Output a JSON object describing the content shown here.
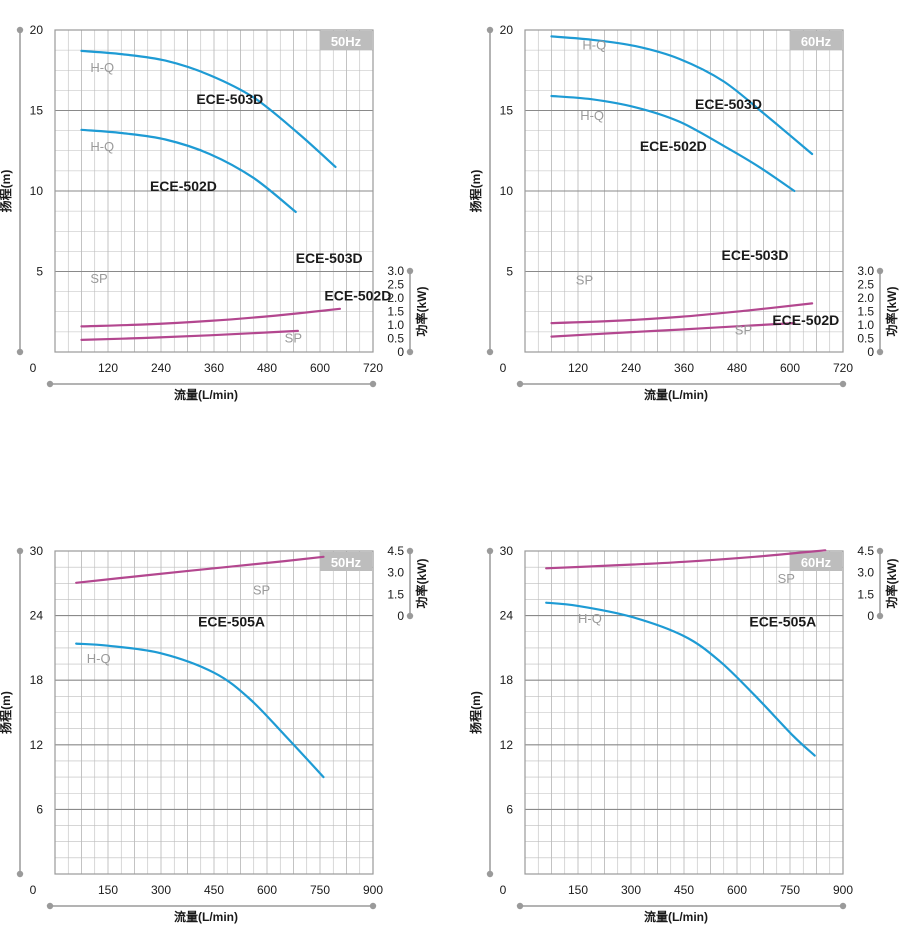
{
  "colors": {
    "head_curve": "#1e9bd4",
    "power_curve": "#b3478f",
    "grid": "#bdbdbd",
    "frame": "#9a9a9a",
    "freq_badge": "#bdbdbd"
  },
  "chart_data": [
    {
      "type": "line",
      "frequency": "50Hz",
      "xlabel": "流量(L/min)",
      "ylabel": "扬程(m)",
      "y2label": "功率(kW)",
      "xlim": [
        0,
        720
      ],
      "xticks": [
        "0",
        "120",
        "240",
        "360",
        "480",
        "600",
        "720"
      ],
      "ylim": [
        0,
        20
      ],
      "yticks": [
        "5",
        "10",
        "15",
        "20"
      ],
      "y2lim": [
        0,
        3.0
      ],
      "y2ticks": [
        "0",
        "0.5",
        "1.0",
        "1.5",
        "2.0",
        "2.5",
        "3.0"
      ],
      "series": [
        {
          "name": "ECE-503D",
          "kind": "H-Q",
          "axis": "left",
          "x": [
            60,
            150,
            250,
            350,
            450,
            550,
            635
          ],
          "y": [
            18.7,
            18.5,
            18.1,
            17.2,
            15.8,
            13.6,
            11.5
          ]
        },
        {
          "name": "ECE-502D",
          "kind": "H-Q",
          "axis": "left",
          "x": [
            60,
            150,
            250,
            350,
            450,
            545
          ],
          "y": [
            13.8,
            13.6,
            13.2,
            12.3,
            10.8,
            8.7
          ]
        },
        {
          "name": "ECE-503D",
          "kind": "SP",
          "axis": "right",
          "x": [
            60,
            200,
            350,
            500,
            645
          ],
          "y": [
            0.95,
            1.02,
            1.15,
            1.35,
            1.6
          ]
        },
        {
          "name": "ECE-502D",
          "kind": "SP",
          "axis": "right",
          "x": [
            60,
            200,
            350,
            550
          ],
          "y": [
            0.45,
            0.52,
            0.62,
            0.78
          ]
        }
      ],
      "annotations": [
        {
          "text": "ECE-503D",
          "class": "curve-label",
          "x": 320,
          "y": 15.4
        },
        {
          "text": "ECE-502D",
          "class": "curve-label",
          "x": 215,
          "y": 10.0
        },
        {
          "text": "ECE-503D",
          "class": "curve-label",
          "x": 545,
          "y": 3.3
        },
        {
          "text": "ECE-502D",
          "class": "curve-label",
          "x": 610,
          "y": 1.9
        },
        {
          "text": "H-Q",
          "class": "curve-type",
          "x": 80,
          "y": 17.4
        },
        {
          "text": "H-Q",
          "class": "curve-type",
          "x": 80,
          "y": 12.5
        },
        {
          "text": "SP",
          "class": "curve-type",
          "x": 80,
          "y": 2.55
        },
        {
          "text": "SP",
          "class": "curve-type",
          "x": 520,
          "y": 0.35
        }
      ]
    },
    {
      "type": "line",
      "frequency": "60Hz",
      "xlabel": "流量(L/min)",
      "ylabel": "扬程(m)",
      "y2label": "功率(kW)",
      "xlim": [
        0,
        720
      ],
      "xticks": [
        "0",
        "120",
        "240",
        "360",
        "480",
        "600",
        "720"
      ],
      "ylim": [
        0,
        20
      ],
      "yticks": [
        "5",
        "10",
        "15",
        "20"
      ],
      "y2lim": [
        0,
        3.0
      ],
      "y2ticks": [
        "0",
        "0.5",
        "1.0",
        "1.5",
        "2.0",
        "2.5",
        "3.0"
      ],
      "series": [
        {
          "name": "ECE-503D",
          "kind": "H-Q",
          "axis": "left",
          "x": [
            60,
            150,
            250,
            350,
            450,
            550,
            650
          ],
          "y": [
            19.6,
            19.4,
            19.0,
            18.2,
            16.8,
            14.6,
            12.3
          ]
        },
        {
          "name": "ECE-502D",
          "kind": "H-Q",
          "axis": "left",
          "x": [
            60,
            150,
            250,
            350,
            450,
            530,
            610
          ],
          "y": [
            15.9,
            15.7,
            15.2,
            14.3,
            12.8,
            11.5,
            10.0
          ]
        },
        {
          "name": "ECE-503D",
          "kind": "SP",
          "axis": "right",
          "x": [
            60,
            200,
            350,
            500,
            650
          ],
          "y": [
            1.07,
            1.15,
            1.3,
            1.53,
            1.8
          ]
        },
        {
          "name": "ECE-502D",
          "kind": "SP",
          "axis": "right",
          "x": [
            60,
            200,
            350,
            500,
            610
          ],
          "y": [
            0.57,
            0.7,
            0.83,
            0.97,
            1.07
          ]
        }
      ],
      "annotations": [
        {
          "text": "ECE-503D",
          "class": "curve-label",
          "x": 385,
          "y": 15.1
        },
        {
          "text": "ECE-502D",
          "class": "curve-label",
          "x": 260,
          "y": 12.5
        },
        {
          "text": "ECE-503D",
          "class": "curve-label",
          "x": 445,
          "y": 3.4
        },
        {
          "text": "ECE-502D",
          "class": "curve-label",
          "x": 560,
          "y": 1.0
        },
        {
          "text": "H-Q",
          "class": "curve-type",
          "x": 130,
          "y": 18.8
        },
        {
          "text": "H-Q",
          "class": "curve-type",
          "x": 125,
          "y": 14.4
        },
        {
          "text": "SP",
          "class": "curve-type",
          "x": 115,
          "y": 2.5
        },
        {
          "text": "SP",
          "class": "curve-type",
          "x": 475,
          "y": 0.65
        }
      ]
    },
    {
      "type": "line",
      "frequency": "50Hz",
      "xlabel": "流量(L/min)",
      "ylabel": "扬程(m)",
      "y2label": "功率(kW)",
      "xlim": [
        0,
        900
      ],
      "xticks": [
        "0",
        "150",
        "300",
        "450",
        "600",
        "750",
        "900"
      ],
      "ylim": [
        0,
        30
      ],
      "yticks": [
        "6",
        "12",
        "18",
        "24",
        "30"
      ],
      "y2lim": [
        0,
        4.5
      ],
      "y2ticks": [
        "0",
        "1.5",
        "3.0",
        "4.5"
      ],
      "series": [
        {
          "name": "ECE-505A",
          "kind": "H-Q",
          "axis": "left",
          "x": [
            60,
            150,
            300,
            450,
            550,
            650,
            760
          ],
          "y": [
            21.4,
            21.2,
            20.5,
            18.7,
            16.3,
            12.9,
            9.0
          ]
        },
        {
          "name": "ECE-505A",
          "kind": "SP",
          "axis": "right",
          "x": [
            60,
            250,
            450,
            650,
            760
          ],
          "y": [
            2.3,
            2.8,
            3.3,
            3.8,
            4.1
          ]
        }
      ],
      "annotations": [
        {
          "text": "ECE-505A",
          "class": "curve-label",
          "x": 405,
          "y": 23.0
        },
        {
          "text": "H-Q",
          "class": "curve-type",
          "x": 90,
          "y": 19.6
        },
        {
          "text": "SP",
          "class": "curve-type",
          "x": 560,
          "y": 1.5
        }
      ]
    },
    {
      "type": "line",
      "frequency": "60Hz",
      "xlabel": "流量(L/min)",
      "ylabel": "扬程(m)",
      "y2label": "功率(kW)",
      "xlim": [
        0,
        900
      ],
      "xticks": [
        "0",
        "150",
        "300",
        "450",
        "600",
        "750",
        "900"
      ],
      "ylim": [
        0,
        30
      ],
      "yticks": [
        "6",
        "12",
        "18",
        "24",
        "30"
      ],
      "y2lim": [
        0,
        4.5
      ],
      "y2ticks": [
        "0",
        "1.5",
        "3.0",
        "4.5"
      ],
      "series": [
        {
          "name": "ECE-505A",
          "kind": "H-Q",
          "axis": "left",
          "x": [
            60,
            150,
            300,
            450,
            550,
            650,
            760,
            820
          ],
          "y": [
            25.2,
            24.9,
            23.9,
            22.1,
            19.8,
            16.6,
            12.8,
            11.0
          ]
        },
        {
          "name": "ECE-505A",
          "kind": "SP",
          "axis": "right",
          "x": [
            60,
            250,
            450,
            650,
            850
          ],
          "y": [
            3.3,
            3.5,
            3.75,
            4.1,
            4.55
          ]
        }
      ],
      "annotations": [
        {
          "text": "ECE-505A",
          "class": "curve-label",
          "x": 635,
          "y": 23.0
        },
        {
          "text": "H-Q",
          "class": "curve-type",
          "x": 150,
          "y": 23.3
        },
        {
          "text": "SP",
          "class": "curve-type",
          "x": 715,
          "y": 2.3
        }
      ]
    }
  ]
}
